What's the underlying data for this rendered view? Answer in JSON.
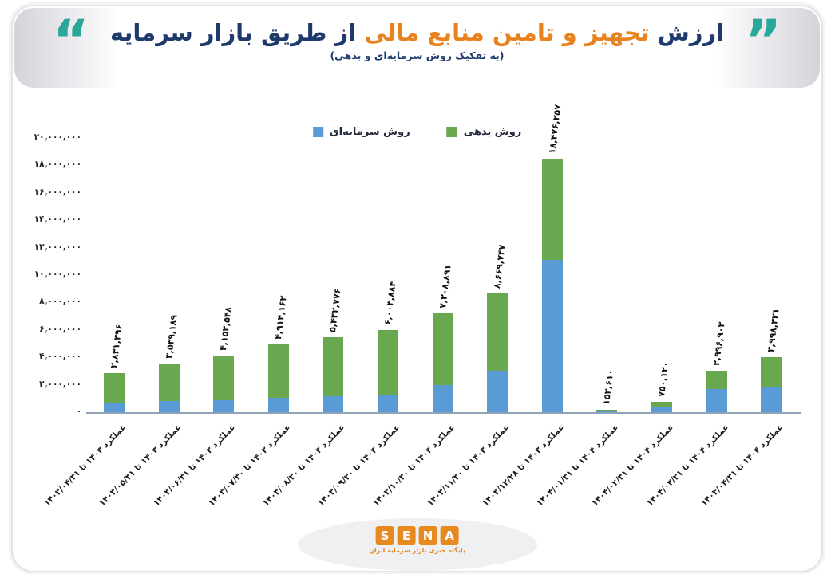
{
  "title": {
    "part_navy_1": "ارزش",
    "part_orange": "تجهیز و تامین منابع مالی",
    "part_navy_2": "از طریق بازار سرمایه",
    "subtitle": "(به تفکیک روش سرمایه‌ای و بدهی)",
    "open_quote": "”",
    "close_quote": "“"
  },
  "legend": {
    "equity_label": "روش سرمایه‌ای",
    "debt_label": "روش بدهی"
  },
  "colors": {
    "equity_blue": "#5b9bd5",
    "debt_green": "#6aa84f",
    "title_orange": "#e8821e",
    "title_navy": "#1e3a6d",
    "quote_teal": "#2aa79b",
    "axis_line": "#8fa3b5"
  },
  "footer": {
    "logo_letters": [
      "S",
      "E",
      "N",
      "A"
    ],
    "logo_caption": "پایگاه خبری بازار سرمایه ایران"
  },
  "chart_data": {
    "type": "bar",
    "stacked": true,
    "title": "ارزش تجهیز و تامین منابع مالی از طریق بازار سرمایه",
    "subtitle": "(به تفکیک روش سرمایه‌ای و بدهی)",
    "legend_position": "top",
    "grid": false,
    "ylim": [
      0,
      20000000
    ],
    "y_tick_step": 2000000,
    "y_tick_labels": [
      "۰",
      "۲,۰۰۰,۰۰۰",
      "۴,۰۰۰,۰۰۰",
      "۶,۰۰۰,۰۰۰",
      "۸,۰۰۰,۰۰۰",
      "۱۰,۰۰۰,۰۰۰",
      "۱۲,۰۰۰,۰۰۰",
      "۱۴,۰۰۰,۰۰۰",
      "۱۶,۰۰۰,۰۰۰",
      "۱۸,۰۰۰,۰۰۰",
      "۲۰,۰۰۰,۰۰۰"
    ],
    "categories": [
      "عملکرد ۱۴۰۳ تا ۱۴۰۳/۰۴/۳۱",
      "عملکرد ۱۴۰۳ تا ۱۴۰۳/۰۵/۳۱",
      "عملکرد ۱۴۰۳ تا ۱۴۰۳/۰۶/۳۱",
      "عملکرد ۱۴۰۳ تا ۱۴۰۳/۰۷/۳۰",
      "عملکرد ۱۴۰۳ تا ۱۴۰۳/۰۸/۳۰",
      "عملکرد ۱۴۰۳ تا ۱۴۰۳/۰۹/۳۰",
      "عملکرد ۱۴۰۳ تا ۱۴۰۳/۱۰/۳۰",
      "عملکرد ۱۴۰۳ تا ۱۴۰۳/۱۱/۳۰",
      "عملکرد ۱۴۰۳ تا ۱۴۰۳/۱۲/۲۸",
      "عملکرد ۱۴۰۴ تا ۱۴۰۴/۰۱/۳۱",
      "عملکرد ۱۴۰۴ تا ۱۴۰۴/۰۲/۳۱",
      "عملکرد ۱۴۰۴ تا ۱۴۰۴/۰۳/۳۱",
      "عملکرد ۱۴۰۴ تا ۱۴۰۴/۰۴/۳۱"
    ],
    "series": [
      {
        "name": "روش سرمایه‌ای",
        "color": "#5b9bd5",
        "values": [
          700000,
          800000,
          900000,
          1050000,
          1150000,
          1250000,
          2000000,
          3050000,
          11100000,
          30000,
          400000,
          1700000,
          1800000
        ],
        "note": "segment heights estimated from pixels"
      },
      {
        "name": "روش بدهی",
        "color": "#6aa84f",
        "values": [
          2131396,
          2739189,
          3253548,
          3864162,
          4292776,
          4753884,
          5208891,
          5619747,
          7376257,
          123610,
          350120,
          1296903,
          2198321
        ],
        "note": "segment heights estimated from pixels"
      }
    ],
    "totals": [
      2831396,
      3539189,
      4153548,
      4914162,
      5442776,
      6003884,
      7208891,
      8669747,
      18476257,
      153610,
      750120,
      2996903,
      3998321
    ],
    "total_labels": [
      "۲,۸۳۱,۳۹۶",
      "۳,۵۳۹,۱۸۹",
      "۴,۱۵۳,۵۴۸",
      "۴,۹۱۴,۱۶۲",
      "۵,۴۴۲,۷۷۶",
      "۶,۰۰۳,۸۸۴",
      "۷,۲۰۸,۸۹۱",
      "۸,۶۶۹,۷۴۷",
      "۱۸,۴۷۶,۲۵۷",
      "۱۵۳,۶۱۰",
      "۷۵۰,۱۲۰",
      "۲,۹۹۶,۹۰۳",
      "۳,۹۹۸,۳۲۱"
    ]
  }
}
